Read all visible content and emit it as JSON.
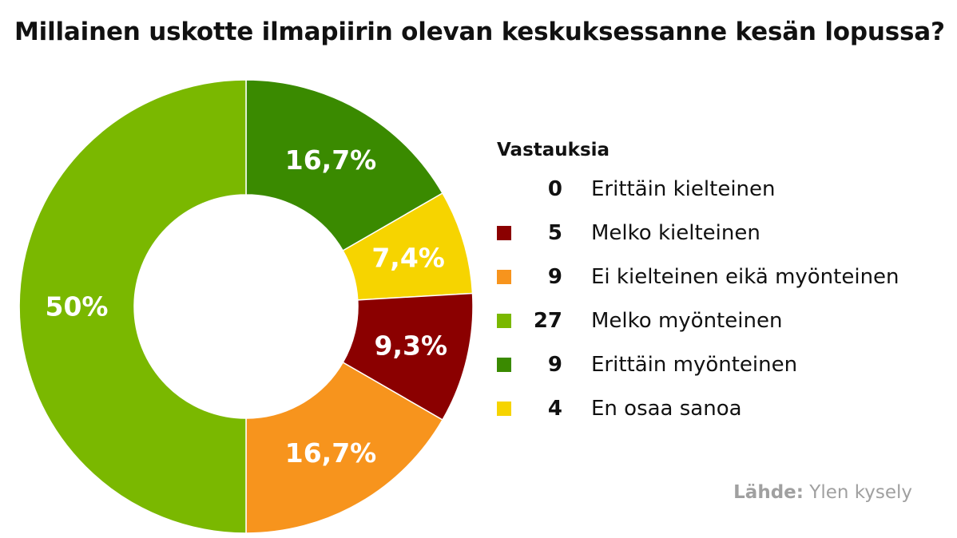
{
  "title": "Millainen uskotte ilmapiirin olevan keskuksessanne kesän lopussa?",
  "legend": {
    "title": "Vastauksia",
    "items": [
      {
        "count": "0",
        "label": "Erittäin kielteinen",
        "color": "#ffffff"
      },
      {
        "count": "5",
        "label": "Melko kielteinen",
        "color": "#8b0000"
      },
      {
        "count": "9",
        "label": "Ei kielteinen eikä myönteinen",
        "color": "#f7941d"
      },
      {
        "count": "27",
        "label": "Melko myönteinen",
        "color": "#7ab800"
      },
      {
        "count": "9",
        "label": "Erittäin myönteinen",
        "color": "#3a8a00"
      },
      {
        "count": "4",
        "label": "En osaa sanoa",
        "color": "#f6d400"
      }
    ]
  },
  "source": {
    "prefix": "Lähde:",
    "text": "Ylen kysely"
  },
  "chart_data": {
    "type": "pie",
    "title": "Millainen uskotte ilmapiirin olevan keskuksessanne kesän lopussa?",
    "slices": [
      {
        "label": "Erittäin myönteinen",
        "value": 9,
        "percent_label": "16,7%",
        "color": "#3a8a00"
      },
      {
        "label": "En osaa sanoa",
        "value": 4,
        "percent_label": "7,4%",
        "color": "#f6d400"
      },
      {
        "label": "Melko kielteinen",
        "value": 5,
        "percent_label": "9,3%",
        "color": "#8b0000"
      },
      {
        "label": "Ei kielteinen eikä myönteinen",
        "value": 9,
        "percent_label": "16,7%",
        "color": "#f7941d"
      },
      {
        "label": "Melko myönteinen",
        "value": 27,
        "percent_label": "50%",
        "color": "#7ab800"
      }
    ],
    "donut": true,
    "legend_position": "right"
  }
}
